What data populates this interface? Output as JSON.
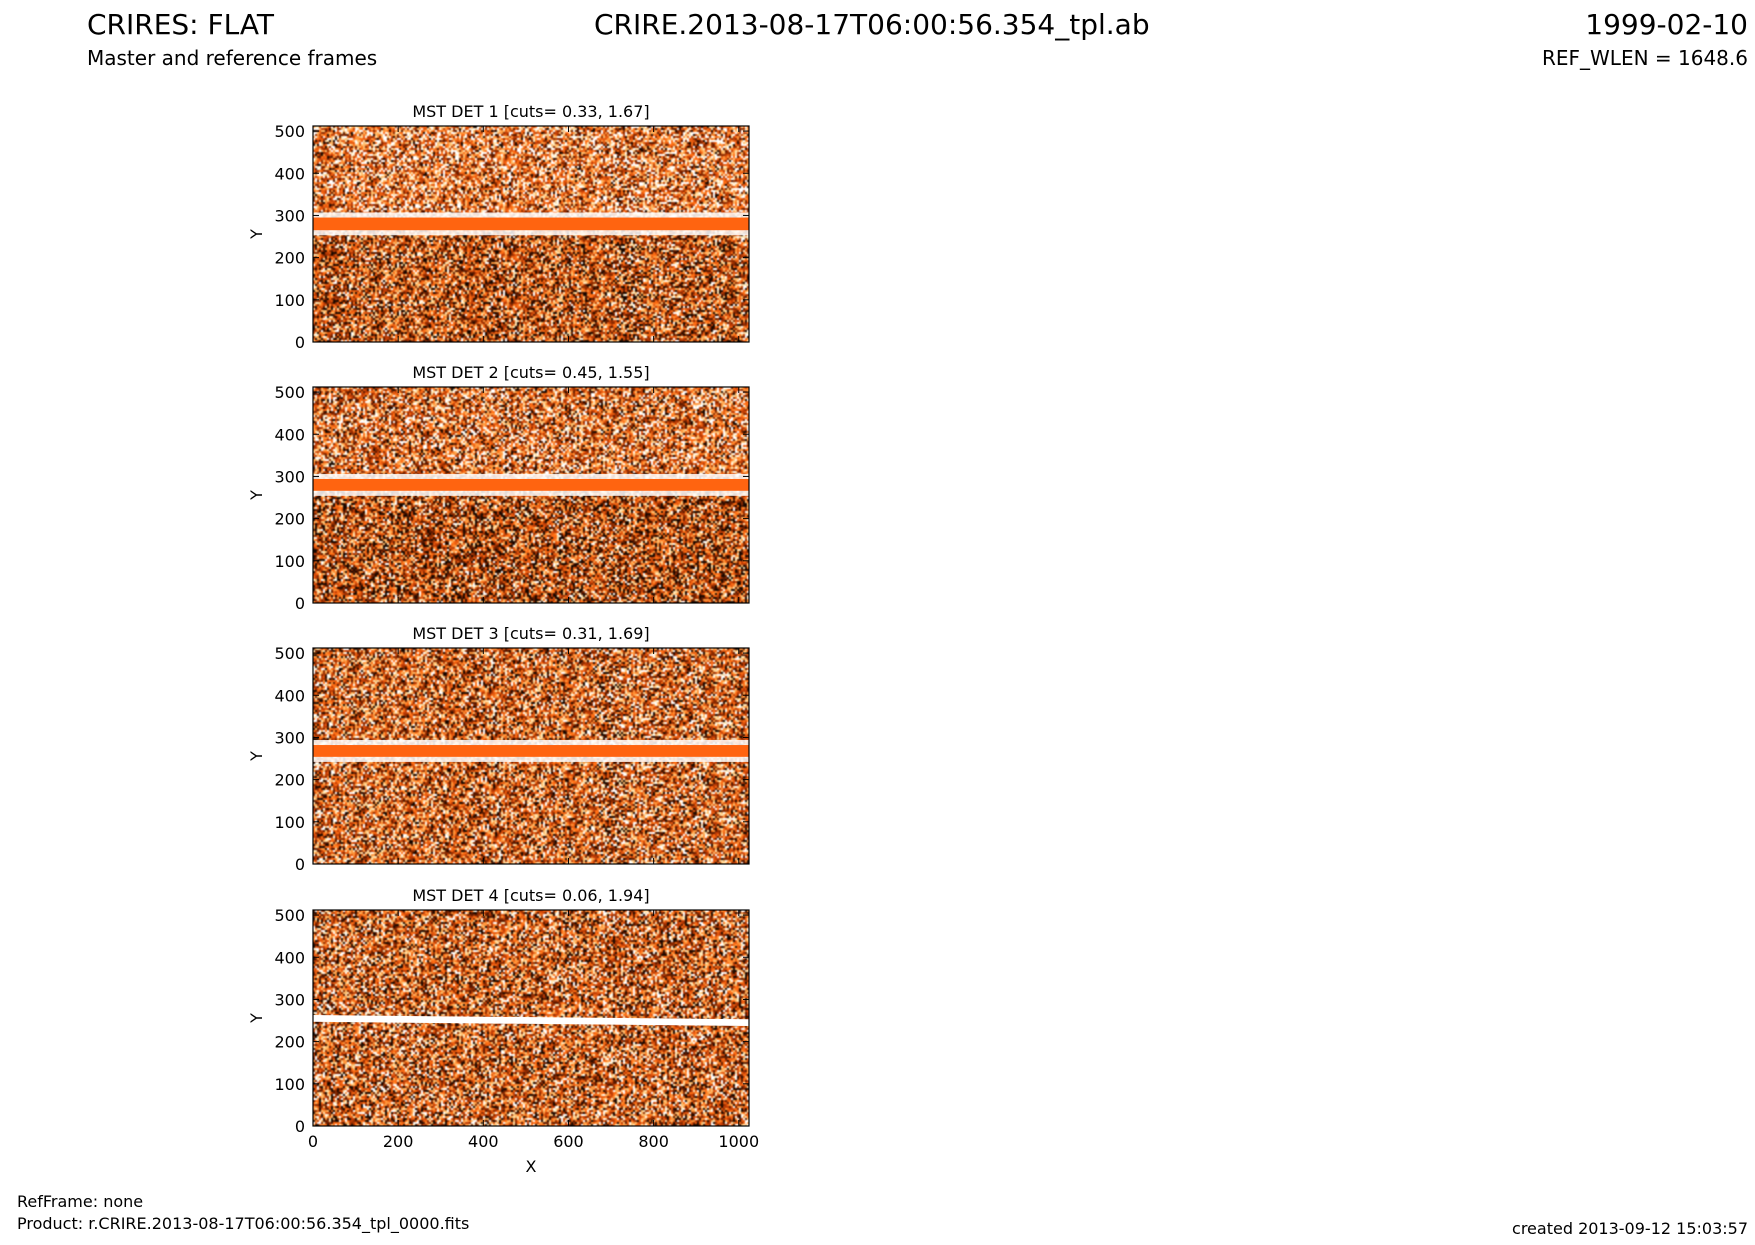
{
  "header": {
    "title_left": "CRIRES: FLAT",
    "subtitle_left": "Master and reference frames",
    "title_center": "CRIRE.2013-08-17T06:00:56.354_tpl.ab",
    "title_right": "1999-02-10",
    "subtitle_right": "REF_WLEN = 1648.6"
  },
  "footer": {
    "refframe": "RefFrame: none",
    "product": "Product: r.CRIRE.2013-08-17T06:00:56.354_tpl_0000.fits",
    "created": "created 2013-09-12 15:03:57"
  },
  "colors": {
    "dark": "#1a0800",
    "mid_dark": "#8b2a00",
    "orange": "#ff6410",
    "light": "#ffb050",
    "white": "#ffffff"
  },
  "chart_data": [
    {
      "type": "heatmap",
      "title": "MST DET 1 [cuts= 0.33, 1.67]",
      "xlabel": "",
      "ylabel": "Y",
      "xlim": [
        0,
        1024
      ],
      "ylim": [
        0,
        512
      ],
      "xticks": [],
      "yticks": [
        0,
        100,
        200,
        300,
        400,
        500
      ],
      "cuts": [
        0.33,
        1.67
      ],
      "band": {
        "y_center": 280,
        "half_width": 15
      }
    },
    {
      "type": "heatmap",
      "title": "MST DET 2 [cuts= 0.45, 1.55]",
      "xlabel": "",
      "ylabel": "Y",
      "xlim": [
        0,
        1024
      ],
      "ylim": [
        0,
        512
      ],
      "xticks": [],
      "yticks": [
        0,
        100,
        200,
        300,
        400,
        500
      ],
      "cuts": [
        0.45,
        1.55
      ],
      "band": {
        "y_center": 280,
        "half_width": 14
      }
    },
    {
      "type": "heatmap",
      "title": "MST DET 3 [cuts= 0.31, 1.69]",
      "xlabel": "",
      "ylabel": "Y",
      "xlim": [
        0,
        1024
      ],
      "ylim": [
        0,
        512
      ],
      "xticks": [],
      "yticks": [
        0,
        100,
        200,
        300,
        400,
        500
      ],
      "cuts": [
        0.31,
        1.69
      ],
      "band": {
        "y_center": 268,
        "half_width": 14
      }
    },
    {
      "type": "heatmap",
      "title": "MST DET 4 [cuts= 0.06, 1.94]",
      "xlabel": "X",
      "ylabel": "Y",
      "xlim": [
        0,
        1024
      ],
      "ylim": [
        0,
        512
      ],
      "xticks": [
        0,
        200,
        400,
        600,
        800,
        1000
      ],
      "yticks": [
        0,
        100,
        200,
        300,
        400,
        500
      ],
      "cuts": [
        0.06,
        1.94
      ],
      "band": {
        "y_center": 255,
        "half_width": 10
      }
    }
  ]
}
